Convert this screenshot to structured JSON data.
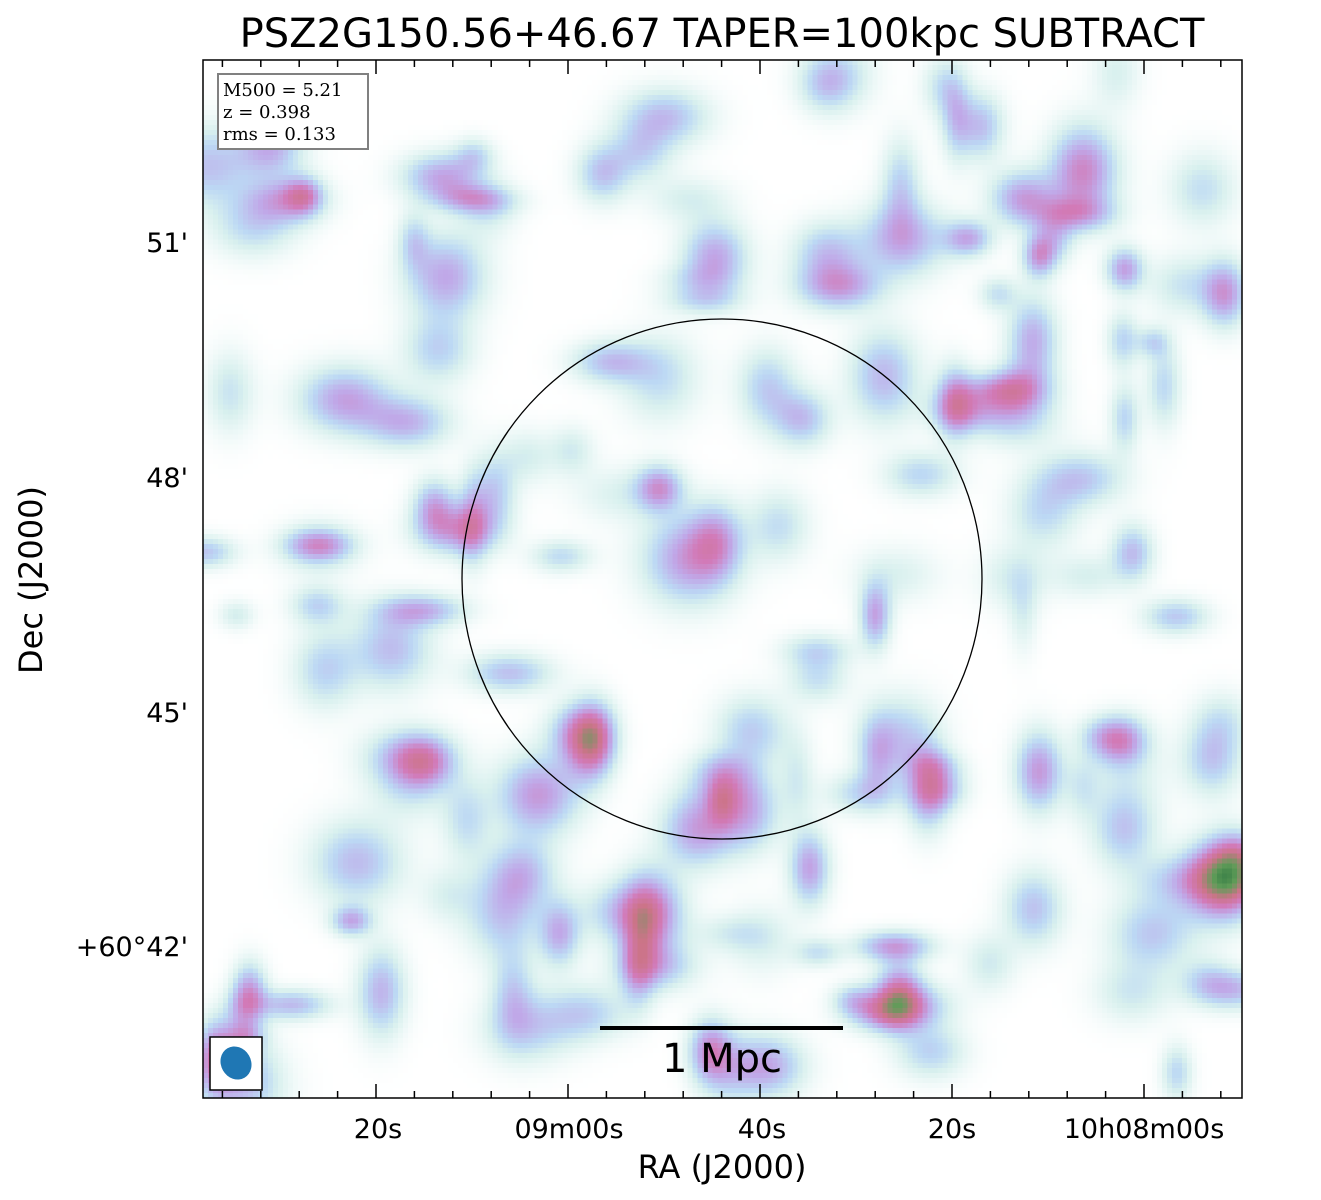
{
  "chart_data": {
    "type": "heatmap",
    "title": "PSZ2G150.56+46.67 TAPER=100kpc SUBTRACT",
    "xlabel": "RA (J2000)",
    "ylabel": "Dec (J2000)",
    "x_ticks": [
      "20s",
      "09m00s",
      "40s",
      "20s",
      "10h08m00s"
    ],
    "y_ticks": [
      "51'",
      "48'",
      "45'",
      "+60°42'"
    ],
    "info_box": {
      "lines": [
        "M500 = 5.21",
        "z = 0.398",
        "rms = 0.133"
      ]
    },
    "scale_bar_label": "1 Mpc",
    "colormap": [
      "#ffffff",
      "#d8f0ee",
      "#bcd8f4",
      "#c0a8e8",
      "#d27ab8",
      "#cc7488",
      "#5f9c58",
      "#1f6b3a"
    ],
    "beam_color": "#1f77b4",
    "circle_color": "#000000",
    "emission_components": [
      {
        "ra_s": 41,
        "dec_m": 46.6,
        "sx": 0.16,
        "sy": 0.24,
        "amp": 1.0
      },
      {
        "ra_s": 47,
        "dec_m": 46.6,
        "sx": 0.55,
        "sy": 0.75,
        "amp": 0.72
      },
      {
        "ra_s": 44,
        "dec_m": 47.2,
        "sx": 0.45,
        "sy": 0.6,
        "amp": 0.45
      },
      {
        "ra_s": 42,
        "dec_m": 45.6,
        "sx": 0.35,
        "sy": 0.8,
        "amp": 0.32
      },
      {
        "ra_s": 33,
        "dec_m": 47.1,
        "sx": 0.22,
        "sy": 0.28,
        "amp": 0.72
      },
      {
        "ra_s": 40,
        "dec_m": 44.9,
        "sx": 0.25,
        "sy": 0.25,
        "amp": 0.55
      },
      {
        "ra_s": 49,
        "dec_m": 43.8,
        "sx": 0.55,
        "sy": 0.3,
        "amp": 0.42
      },
      {
        "ra_s": 59,
        "dec_m": 45.4,
        "sx": 0.3,
        "sy": 0.35,
        "amp": 0.52
      },
      {
        "ra_s": 75,
        "dec_m": 49.0,
        "sx": 0.28,
        "sy": 0.45,
        "amp": 0.6
      },
      {
        "ra_s": 46,
        "dec_m": 52.2,
        "sx": 0.2,
        "sy": 0.35,
        "amp": 0.62
      },
      {
        "ra_s": 68,
        "dec_m": 50.9,
        "sx": 0.2,
        "sy": 0.4,
        "amp": 0.58
      },
      {
        "ra_s": 11,
        "dec_m": 49.6,
        "sx": 0.25,
        "sy": 0.2,
        "amp": 0.78
      },
      {
        "ra_s": 4,
        "dec_m": 48.9,
        "sx": 0.35,
        "sy": 0.28,
        "amp": 0.9
      },
      {
        "ra_s": 1,
        "dec_m": 48.0,
        "sx": 0.28,
        "sy": 0.32,
        "amp": 0.95
      },
      {
        "ra_s": -5,
        "dec_m": 48.3,
        "sx": 0.32,
        "sy": 0.25,
        "amp": 0.88
      },
      {
        "ra_s": 8,
        "dec_m": 48.6,
        "sx": 0.6,
        "sy": 0.25,
        "amp": 0.45
      },
      {
        "ra_s": 2,
        "dec_m": 51.1,
        "sx": 0.2,
        "sy": 0.2,
        "amp": 0.6
      },
      {
        "ra_s": 83,
        "dec_m": 45.0,
        "sx": 0.4,
        "sy": 0.2,
        "amp": 0.6
      },
      {
        "ra_s": 92,
        "dec_m": 43.4,
        "sx": 0.45,
        "sy": 0.2,
        "amp": 0.62
      },
      {
        "ra_s": 62,
        "dec_m": 51.5,
        "sx": 0.35,
        "sy": 0.5,
        "amp": 0.38
      },
      {
        "ra_s": 52,
        "dec_m": 49.5,
        "sx": 0.2,
        "sy": 0.25,
        "amp": 0.42
      },
      {
        "ra_s": 31,
        "dec_m": 52.3,
        "sx": 0.2,
        "sy": 0.2,
        "amp": 0.5
      },
      {
        "ra_s": 8,
        "dec_m": 44.7,
        "sx": 0.25,
        "sy": 0.25,
        "amp": 0.45
      },
      {
        "ra_s": -2,
        "dec_m": 44.6,
        "sx": 0.2,
        "sy": 0.3,
        "amp": 0.58
      },
      {
        "ra_s": -2,
        "dec_m": 43.2,
        "sx": 0.2,
        "sy": 0.25,
        "amp": 0.58
      },
      {
        "ra_s": 42,
        "dec_m": 42.0,
        "sx": 0.3,
        "sy": 0.2,
        "amp": 0.45
      },
      {
        "ra_s": 37,
        "dec_m": 40.8,
        "sx": 0.2,
        "sy": 0.4,
        "amp": 0.45
      },
      {
        "ra_s": 74,
        "dec_m": 40.8,
        "sx": 0.4,
        "sy": 0.3,
        "amp": 0.45
      },
      {
        "ra_s": 68,
        "dec_m": 42.7,
        "sx": 0.3,
        "sy": 0.35,
        "amp": 0.4
      },
      {
        "ra_s": 58,
        "dec_m": 42.0,
        "sx": 0.2,
        "sy": 0.2,
        "amp": 0.4
      },
      {
        "ra_s": 81,
        "dec_m": 42.4,
        "sx": 0.2,
        "sy": 0.2,
        "amp": 0.4
      },
      {
        "ra_s": 73,
        "dec_m": 43.2,
        "sx": 0.2,
        "sy": 0.25,
        "amp": 0.45
      },
      {
        "ra_s": 15,
        "dec_m": 43.2,
        "sx": 0.2,
        "sy": 0.2,
        "amp": 0.45
      },
      {
        "ra_s": 5,
        "dec_m": 41.0,
        "sx": 0.2,
        "sy": 0.2,
        "amp": 0.45
      },
      {
        "ra_s": 26,
        "dec_m": 43.3,
        "sx": 0.3,
        "sy": 0.2,
        "amp": 0.35
      },
      {
        "ra_s": 54,
        "dec_m": 47.5,
        "sx": 0.4,
        "sy": 0.2,
        "amp": 0.3
      },
      {
        "ra_s": 29,
        "dec_m": 46.8,
        "sx": 0.2,
        "sy": 0.2,
        "amp": 0.32
      },
      {
        "ra_s": 16,
        "dec_m": 47.4,
        "sx": 0.2,
        "sy": 0.2,
        "amp": 0.32
      },
      {
        "ra_s": 15,
        "dec_m": 50.2,
        "sx": 0.35,
        "sy": 0.2,
        "amp": 0.3
      },
      {
        "ra_s": 23,
        "dec_m": 51.4,
        "sx": 0.3,
        "sy": 0.2,
        "amp": 0.3
      },
      {
        "ra_s": 61,
        "dec_m": 46.0,
        "sx": 0.4,
        "sy": 0.2,
        "amp": 0.3
      },
      {
        "ra_s": 86,
        "dec_m": 46.7,
        "sx": 0.25,
        "sy": 0.2,
        "amp": 0.3
      },
      {
        "ra_s": 88,
        "dec_m": 51.5,
        "sx": 0.3,
        "sy": 0.4,
        "amp": 0.3
      },
      {
        "ra_s": 53,
        "dec_m": 44.5,
        "sx": 0.2,
        "sy": 0.2,
        "amp": 0.28
      },
      {
        "ra_s": 21,
        "dec_m": 44.2,
        "sx": 0.3,
        "sy": 0.25,
        "amp": 0.3
      },
      {
        "ra_s": 12,
        "dec_m": 45.6,
        "sx": 0.2,
        "sy": 0.2,
        "amp": 0.3
      },
      {
        "ra_s": 47,
        "dec_m": 41.5,
        "sx": 0.35,
        "sy": 0.2,
        "amp": 0.28
      },
      {
        "ra_s": 90,
        "dec_m": 41.0,
        "sx": 0.25,
        "sy": 0.3,
        "amp": 0.3
      },
      {
        "ra_s": 28,
        "dec_m": 41.6,
        "sx": 0.3,
        "sy": 0.2,
        "amp": 0.28
      }
    ]
  }
}
